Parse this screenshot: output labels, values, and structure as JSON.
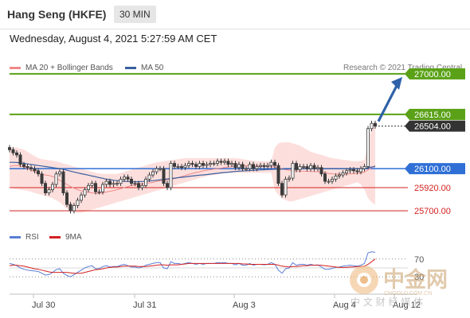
{
  "header": {
    "title": "Hang Seng (HKFE)",
    "timeframe": "30 MIN"
  },
  "date_line": "Wednesday, August 4, 2021 5:27:59 AM CET",
  "legend": {
    "ma20_label": "MA 20 + Bollinger Bands",
    "ma20_color": "#f08a8a",
    "ma50_label": "MA 50",
    "ma50_color": "#3a5fa0"
  },
  "credit": "Research © 2021 Trading Central",
  "rsi_legend": {
    "rsi_label": "RSI",
    "rsi_color": "#5a7fd6",
    "ma_label": "9MA",
    "ma_color": "#d42020"
  },
  "watermark": {
    "logo_text": "中金网",
    "domain": "CNGOLD.COM.CN",
    "subtitle": "中 文 财 经 媒 体"
  },
  "chart_data": [
    {
      "type": "candlestick",
      "ylim": [
        25550,
        27120
      ],
      "x_ticks": [
        "Jul 30",
        "Jul 31",
        "Aug 3",
        "Aug 4",
        "Aug 12"
      ],
      "levels": [
        {
          "value": 27000.0,
          "label": "27000.00",
          "style": "target",
          "color": "#5aa117"
        },
        {
          "value": 26615.0,
          "label": "26615.00",
          "style": "resistance",
          "color": "#5aa117"
        },
        {
          "value": 26504.0,
          "label": "26504.00",
          "style": "last",
          "color": "#333333"
        },
        {
          "value": 26100.0,
          "label": "26100.00",
          "style": "pivot",
          "color": "#2f6fd6"
        },
        {
          "value": 25920.0,
          "label": "25920.00",
          "style": "support",
          "color": "#d42020"
        },
        {
          "value": 25700.0,
          "label": "25700.00",
          "style": "support",
          "color": "#d42020"
        }
      ],
      "close": [
        26280,
        26250,
        26230,
        26140,
        26120,
        26110,
        26100,
        26080,
        26050,
        25960,
        25870,
        25900,
        25950,
        26050,
        26070,
        25870,
        25760,
        25700,
        25750,
        25800,
        25850,
        25900,
        25940,
        25960,
        25880,
        25880,
        25950,
        25980,
        25950,
        25960,
        25960,
        26000,
        26020,
        26000,
        25960,
        25960,
        25920,
        25940,
        26000,
        26040,
        26070,
        26100,
        26100,
        25960,
        25920,
        26150,
        26120,
        26120,
        26110,
        26130,
        26150,
        26140,
        26120,
        26150,
        26130,
        26140,
        26150,
        26150,
        26170,
        26160,
        26170,
        26140,
        26150,
        26110,
        26140,
        26100,
        26100,
        26140,
        26100,
        26120,
        26130,
        26120,
        26130,
        26160,
        26130,
        25960,
        25850,
        26000,
        26010,
        26150,
        26090,
        26120,
        26120,
        26100,
        26130,
        26100,
        26110,
        26050,
        25980,
        25980,
        26000,
        26030,
        26040,
        26060,
        26080,
        26090,
        26080,
        26070,
        26100,
        26120,
        26480,
        26530,
        26504
      ],
      "ma20": [
        26120,
        26130,
        26130,
        26125,
        26115,
        26100,
        26085,
        26070,
        26055,
        26045,
        26040,
        26035,
        26025,
        26010,
        25990,
        25970,
        25950,
        25930,
        25915,
        25900,
        25890,
        25880,
        25875,
        25870,
        25865,
        25865,
        25870,
        25878,
        25885,
        25893,
        25900,
        25910,
        25920,
        25930,
        25940,
        25945,
        25950,
        25955,
        25960,
        25965,
        25970,
        25978,
        25985,
        25990,
        25995,
        26000,
        26005,
        26015,
        26025,
        26035,
        26045,
        26055,
        26063,
        26070,
        26078,
        26085,
        26090,
        26095,
        26100,
        26105,
        26110,
        26115,
        26120,
        26122,
        26125,
        26127,
        26128,
        26130,
        26130,
        26128,
        26126,
        26124,
        26122,
        26120,
        26115,
        26108,
        26100,
        26092,
        26085,
        26080,
        26078,
        26076,
        26075,
        26074,
        26073,
        26072,
        26070,
        26066,
        26060,
        26055,
        26050,
        26048,
        26046,
        26046,
        26048,
        26050,
        26052,
        26055,
        26060,
        26066,
        26090,
        26110,
        26130
      ],
      "ma50": [
        26160,
        26160,
        26158,
        26155,
        26150,
        26145,
        26140,
        26135,
        26130,
        26125,
        26120,
        26115,
        26110,
        26105,
        26100,
        26093,
        26085,
        26076,
        26068,
        26060,
        26052,
        26045,
        26038,
        26030,
        26023,
        26015,
        26008,
        26000,
        25995,
        25990,
        25986,
        25982,
        25980,
        25978,
        25976,
        25976,
        25976,
        25978,
        25980,
        25983,
        25986,
        25990,
        25994,
        25998,
        26002,
        26006,
        26010,
        26014,
        26018,
        26022,
        26026,
        26030,
        26034,
        26038,
        26041,
        26044,
        26048,
        26052,
        26056,
        26060,
        26063,
        26066,
        26070,
        26073,
        26076,
        26078,
        26080,
        26082,
        26084,
        26086,
        26088,
        26090,
        26091,
        26093,
        26094,
        26094,
        26095,
        26096,
        26097,
        26098,
        26099,
        26100,
        26100,
        26100,
        26100,
        26100,
        26100,
        26100,
        26100,
        26100,
        26100,
        26100,
        26100,
        26100,
        26100,
        26100,
        26100,
        26100,
        26100,
        26102,
        26110,
        26115,
        26120
      ],
      "bb_upper": [
        26300,
        26300,
        26300,
        26290,
        26280,
        26260,
        26240,
        26220,
        26200,
        26190,
        26185,
        26180,
        26175,
        26170,
        26160,
        26150,
        26140,
        26130,
        26120,
        26110,
        26100,
        26090,
        26080,
        26070,
        26060,
        26055,
        26050,
        26050,
        26050,
        26050,
        26050,
        26060,
        26070,
        26080,
        26090,
        26100,
        26110,
        26120,
        26130,
        26140,
        26150,
        26160,
        26165,
        26170,
        26175,
        26180,
        26185,
        26190,
        26195,
        26200,
        26200,
        26200,
        26200,
        26200,
        26200,
        26200,
        26200,
        26200,
        26200,
        26200,
        26200,
        26200,
        26200,
        26200,
        26195,
        26190,
        26185,
        26180,
        26175,
        26170,
        26170,
        26170,
        26170,
        26170,
        26300,
        26340,
        26350,
        26350,
        26350,
        26340,
        26330,
        26320,
        26300,
        26280,
        26260,
        26250,
        26240,
        26230,
        26220,
        26210,
        26200,
        26195,
        26190,
        26185,
        26180,
        26175,
        26170,
        26170,
        26175,
        26180,
        26350,
        26500,
        26550
      ],
      "bb_lower": [
        25920,
        25910,
        25905,
        25900,
        25895,
        25890,
        25880,
        25870,
        25860,
        25850,
        25840,
        25830,
        25820,
        25800,
        25780,
        25750,
        25720,
        25700,
        25690,
        25680,
        25680,
        25690,
        25700,
        25710,
        25720,
        25730,
        25740,
        25750,
        25760,
        25770,
        25780,
        25790,
        25800,
        25810,
        25820,
        25830,
        25840,
        25850,
        25860,
        25870,
        25880,
        25890,
        25900,
        25910,
        25920,
        25930,
        25940,
        25950,
        25960,
        25970,
        25980,
        25990,
        26000,
        26010,
        26020,
        26030,
        26035,
        26040,
        26045,
        26050,
        26055,
        26060,
        26060,
        26060,
        26060,
        26060,
        26060,
        26060,
        26060,
        26060,
        26060,
        26060,
        26060,
        26060,
        25900,
        25850,
        25820,
        25800,
        25790,
        25790,
        25800,
        25810,
        25820,
        25830,
        25840,
        25850,
        25860,
        25870,
        25880,
        25890,
        25900,
        25910,
        25920,
        25930,
        25940,
        25950,
        25960,
        25970,
        25950,
        25900,
        25820,
        25780,
        25760
      ]
    },
    {
      "type": "line",
      "ylim": [
        0,
        100
      ],
      "y_ticks": [
        30,
        70
      ],
      "series": [
        {
          "name": "RSI",
          "values": [
            60,
            58,
            55,
            50,
            47,
            45,
            44,
            43,
            42,
            38,
            34,
            35,
            40,
            46,
            48,
            38,
            33,
            30,
            35,
            40,
            45,
            50,
            53,
            55,
            48,
            48,
            53,
            55,
            52,
            53,
            53,
            56,
            58,
            55,
            52,
            52,
            50,
            52,
            56,
            58,
            60,
            62,
            62,
            50,
            48,
            64,
            60,
            60,
            58,
            60,
            62,
            60,
            58,
            60,
            58,
            60,
            60,
            60,
            62,
            61,
            62,
            60,
            60,
            57,
            60,
            56,
            56,
            60,
            56,
            58,
            58,
            57,
            58,
            62,
            58,
            45,
            38,
            48,
            50,
            62,
            56,
            58,
            58,
            56,
            58,
            56,
            57,
            52,
            47,
            47,
            49,
            51,
            52,
            54,
            55,
            56,
            55,
            54,
            56,
            60,
            84,
            86,
            85
          ]
        },
        {
          "name": "9MA",
          "values": [
            55,
            56,
            56,
            55,
            54,
            52,
            50,
            48,
            47,
            45,
            43,
            41,
            40,
            40,
            40,
            40,
            40,
            39,
            38,
            38,
            38,
            40,
            42,
            44,
            46,
            47,
            48,
            50,
            51,
            52,
            52,
            53,
            54,
            54,
            54,
            54,
            53,
            53,
            53,
            54,
            55,
            56,
            57,
            57,
            56,
            57,
            57,
            57,
            58,
            59,
            60,
            60,
            60,
            60,
            60,
            60,
            60,
            60,
            60,
            60,
            60,
            60,
            60,
            60,
            60,
            59,
            59,
            58,
            58,
            58,
            58,
            58,
            58,
            58,
            58,
            56,
            54,
            53,
            52,
            53,
            53,
            54,
            55,
            55,
            56,
            56,
            56,
            56,
            55,
            54,
            53,
            52,
            51,
            51,
            51,
            52,
            52,
            53,
            53,
            54,
            58,
            64,
            70
          ]
        }
      ]
    }
  ]
}
